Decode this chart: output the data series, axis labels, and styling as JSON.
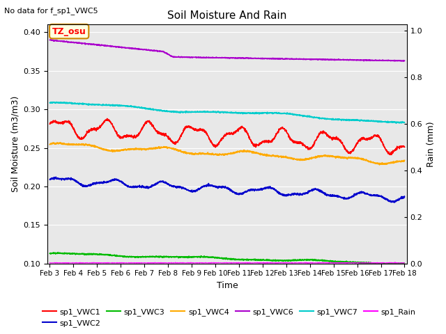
{
  "title": "Soil Moisture And Rain",
  "note": "No data for f_sp1_VWC5",
  "xlabel": "Time",
  "ylabel_left": "Soil Moisture (m3/m3)",
  "ylabel_right": "Rain (mm)",
  "site_label": "TZ_osu",
  "date_start": 3,
  "date_end": 18,
  "ylim_left": [
    0.1,
    0.41
  ],
  "ylim_right": [
    0.0,
    1.025
  ],
  "yticks_left": [
    0.1,
    0.15,
    0.2,
    0.25,
    0.3,
    0.35,
    0.4
  ],
  "yticks_right": [
    0.0,
    0.2,
    0.4,
    0.6,
    0.8,
    1.0
  ],
  "xtick_labels": [
    "Feb 3",
    "Feb 4",
    "Feb 5",
    "Feb 6",
    "Feb 7",
    "Feb 8",
    "Feb 9",
    "Feb 10",
    "Feb 11",
    "Feb 12",
    "Feb 13",
    "Feb 14",
    "Feb 15",
    "Feb 16",
    "Feb 17",
    "Feb 18"
  ],
  "series": {
    "VWC1": {
      "color": "#ff0000"
    },
    "VWC2": {
      "color": "#0000cc"
    },
    "VWC3": {
      "color": "#00bb00"
    },
    "VWC4": {
      "color": "#ffaa00"
    },
    "VWC6": {
      "color": "#aa00cc"
    },
    "VWC7": {
      "color": "#00cccc"
    },
    "Rain": {
      "color": "#ff00ff"
    }
  },
  "background_color": "#e8e8e8",
  "fig_background": "#ffffff"
}
